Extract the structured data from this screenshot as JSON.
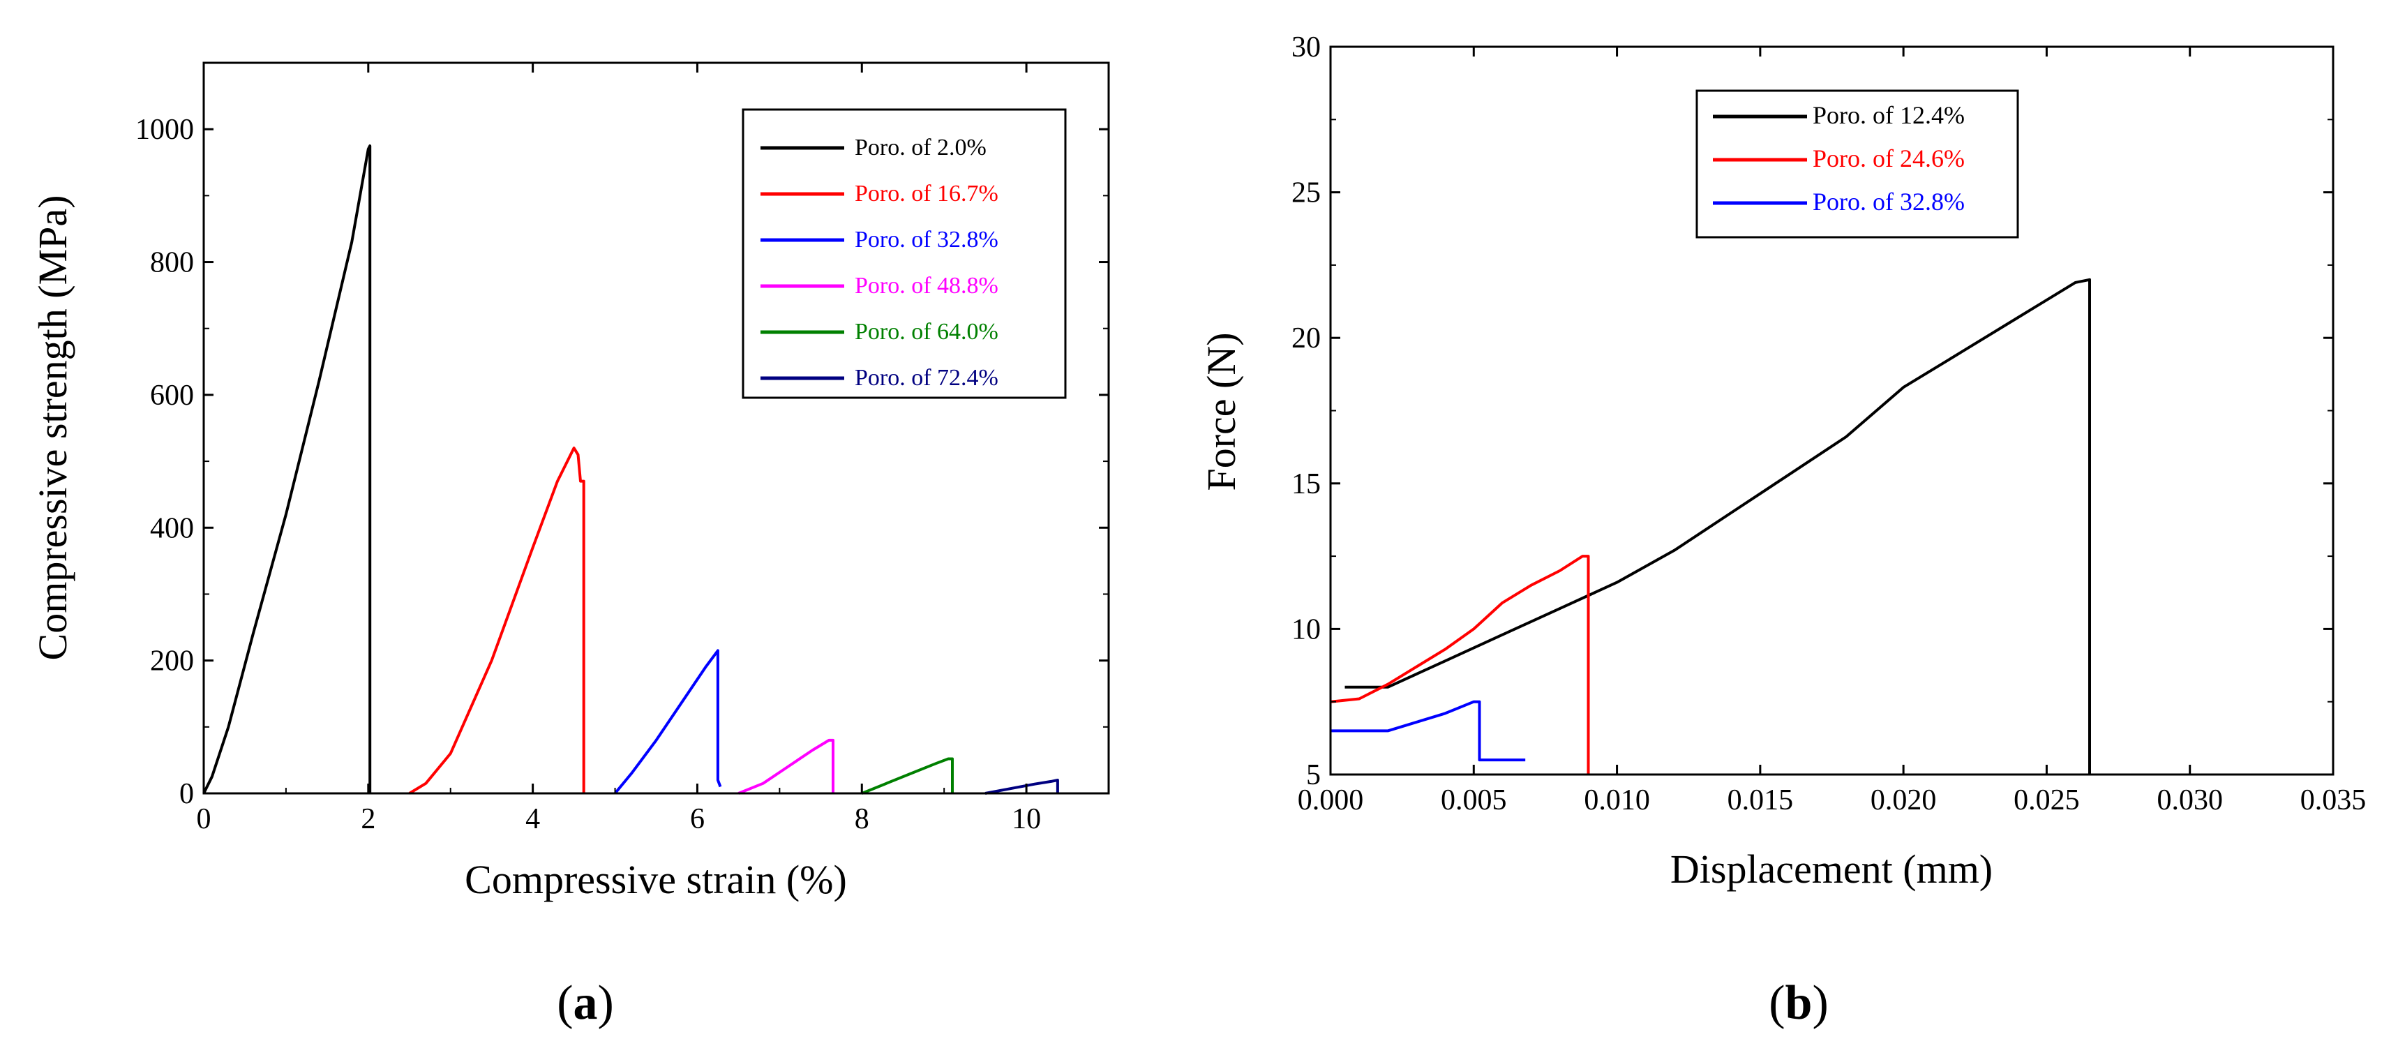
{
  "chart_data": [
    {
      "type": "line",
      "panel_label": "a",
      "xlabel": "Compressive strain (%)",
      "ylabel": "Compressive strength (MPa)",
      "xlim": [
        0,
        11
      ],
      "ylim": [
        0,
        1100
      ],
      "xticks": [
        0,
        2,
        4,
        6,
        8,
        10
      ],
      "yticks": [
        0,
        200,
        400,
        600,
        800,
        1000
      ],
      "legend_position": "top-right",
      "series": [
        {
          "name": "Poro. of 2.0%",
          "color": "#000000",
          "x": [
            0,
            0.1,
            0.3,
            0.6,
            1.0,
            1.4,
            1.8,
            2.0,
            2.02,
            2.02
          ],
          "y": [
            0,
            25,
            100,
            240,
            420,
            620,
            830,
            970,
            975,
            0
          ]
        },
        {
          "name": "Poro. of 16.7%",
          "color": "#ff0000",
          "x": [
            2.5,
            2.7,
            3.0,
            3.5,
            4.0,
            4.3,
            4.5,
            4.55,
            4.58,
            4.6,
            4.62,
            4.62
          ],
          "y": [
            0,
            15,
            60,
            200,
            370,
            470,
            520,
            510,
            470,
            470,
            470,
            0
          ]
        },
        {
          "name": "Poro. of 32.8%",
          "color": "#0000ff",
          "x": [
            5.0,
            5.2,
            5.5,
            5.8,
            6.1,
            6.25,
            6.25,
            6.28
          ],
          "y": [
            0,
            30,
            80,
            135,
            190,
            215,
            20,
            10
          ]
        },
        {
          "name": "Poro. of 48.8%",
          "color": "#ff00ff",
          "x": [
            6.5,
            6.8,
            7.1,
            7.4,
            7.6,
            7.65,
            7.65
          ],
          "y": [
            0,
            15,
            40,
            65,
            80,
            80,
            0
          ]
        },
        {
          "name": "Poro. of 64.0%",
          "color": "#008000",
          "x": [
            8.0,
            8.3,
            8.6,
            8.9,
            9.05,
            9.1,
            9.1
          ],
          "y": [
            0,
            15,
            30,
            45,
            52,
            52,
            0
          ]
        },
        {
          "name": "Poro. of 72.4%",
          "color": "#000080",
          "x": [
            9.5,
            9.8,
            10.1,
            10.3,
            10.38,
            10.38
          ],
          "y": [
            0,
            7,
            14,
            18,
            20,
            0
          ]
        }
      ]
    },
    {
      "type": "line",
      "panel_label": "b",
      "xlabel": "Displacement (mm)",
      "ylabel": "Force (N)",
      "xlim": [
        0,
        0.035
      ],
      "ylim": [
        5,
        30
      ],
      "xticks": [
        0.0,
        0.005,
        0.01,
        0.015,
        0.02,
        0.025,
        0.03,
        0.035
      ],
      "xtick_labels": [
        "0.000",
        "0.005",
        "0.010",
        "0.015",
        "0.020",
        "0.025",
        "0.030",
        "0.035"
      ],
      "yticks": [
        5,
        10,
        15,
        20,
        25,
        30
      ],
      "legend_position": "top-center",
      "series": [
        {
          "name": "Poro. of 12.4%",
          "color": "#000000",
          "x": [
            0.0005,
            0.002,
            0.004,
            0.006,
            0.008,
            0.01,
            0.012,
            0.014,
            0.016,
            0.018,
            0.02,
            0.022,
            0.024,
            0.026,
            0.0265,
            0.0265,
            0.0265
          ],
          "y": [
            8.0,
            8.0,
            8.9,
            9.8,
            10.7,
            11.6,
            12.7,
            14.0,
            15.3,
            16.6,
            18.3,
            19.5,
            20.7,
            21.9,
            22.0,
            9.5,
            5.0
          ]
        },
        {
          "name": "Poro. of 24.6%",
          "color": "#ff0000",
          "x": [
            0.0,
            0.001,
            0.002,
            0.003,
            0.004,
            0.005,
            0.006,
            0.007,
            0.008,
            0.0088,
            0.009,
            0.009,
            0.009
          ],
          "y": [
            7.5,
            7.6,
            8.1,
            8.7,
            9.3,
            10.0,
            10.9,
            11.5,
            12.0,
            12.5,
            12.5,
            6.5,
            5.0
          ]
        },
        {
          "name": "Poro. of 32.8%",
          "color": "#0000ff",
          "x": [
            0.0,
            0.002,
            0.003,
            0.004,
            0.005,
            0.0052,
            0.0052,
            0.0068
          ],
          "y": [
            6.5,
            6.5,
            6.8,
            7.1,
            7.5,
            7.5,
            5.5,
            5.5
          ]
        }
      ]
    }
  ]
}
